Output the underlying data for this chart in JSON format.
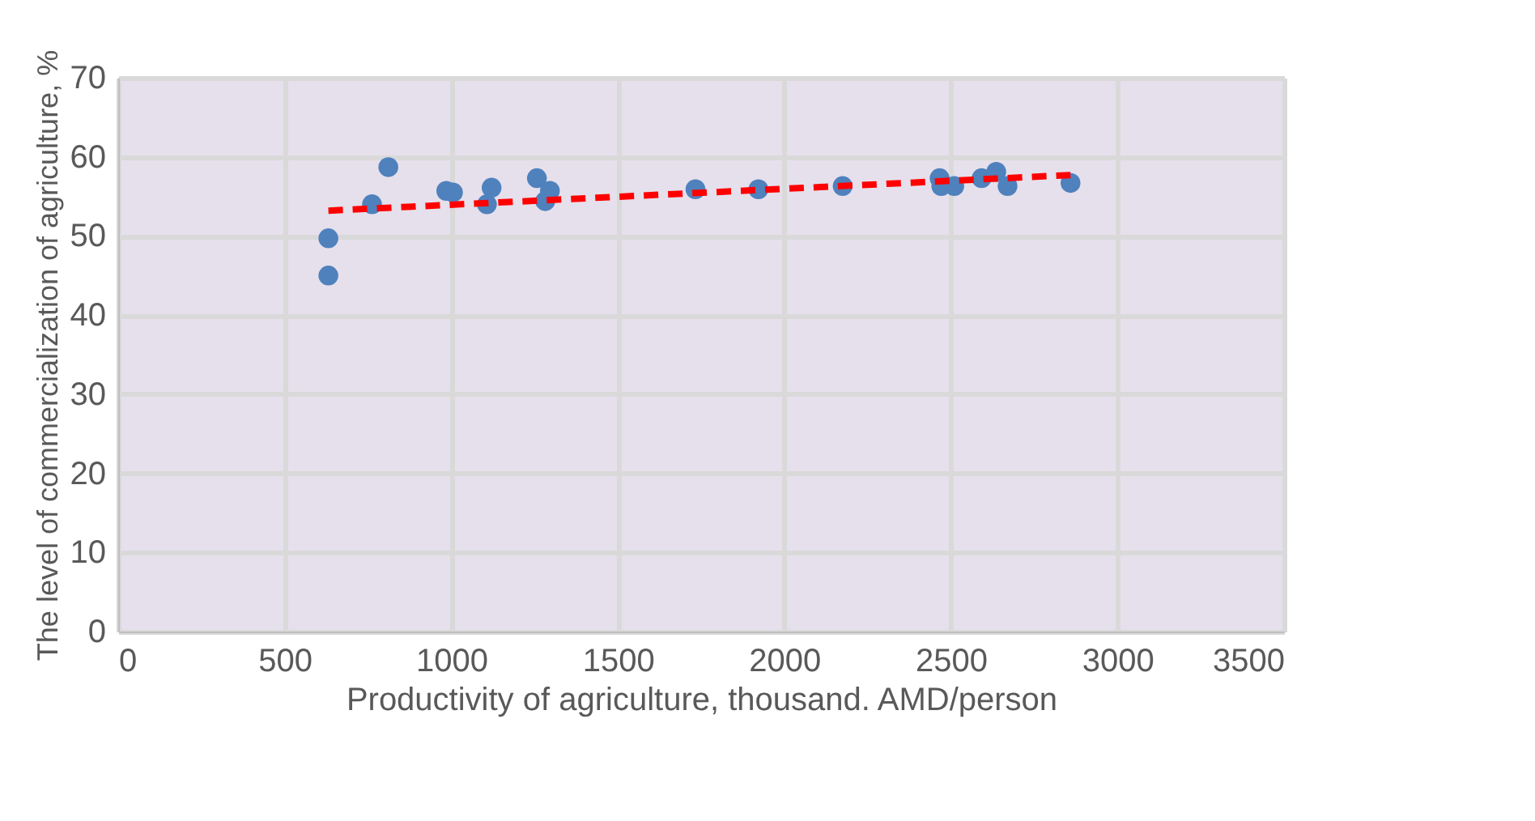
{
  "chart_data": {
    "type": "scatter",
    "xlabel": "Productivity of agriculture, thousand. AMD/person",
    "ylabel": "The level of commercialization of agriculture, %",
    "xlim": [
      0,
      3500
    ],
    "xticks": [
      0,
      500,
      1000,
      1500,
      2000,
      2500,
      3000,
      3500
    ],
    "ylim": [
      0,
      70
    ],
    "yticks": [
      0,
      10,
      20,
      30,
      40,
      50,
      60,
      70
    ],
    "grid": true,
    "marker": "circle",
    "series": [
      {
        "color": "#4f81bd",
        "x": [
          631,
          631,
          762,
          811,
          985,
          1005,
          1107,
          1121,
          1257,
          1282,
          1296,
          1733,
          1922,
          2175,
          2466,
          2471,
          2510,
          2592,
          2636,
          2670,
          2859
        ],
        "values": [
          45.0,
          49.7,
          54.0,
          58.7,
          55.7,
          55.5,
          54.0,
          56.1,
          57.3,
          54.4,
          55.7,
          55.9,
          55.9,
          56.3,
          57.3,
          56.3,
          56.3,
          57.3,
          58.1,
          56.3,
          56.7
        ]
      },
      {
        "type": "line",
        "color": "#ff0000",
        "line_style": "dashed",
        "marker": "none",
        "x": [
          631,
          2859
        ],
        "values": [
          53.2,
          57.7
        ]
      }
    ]
  }
}
